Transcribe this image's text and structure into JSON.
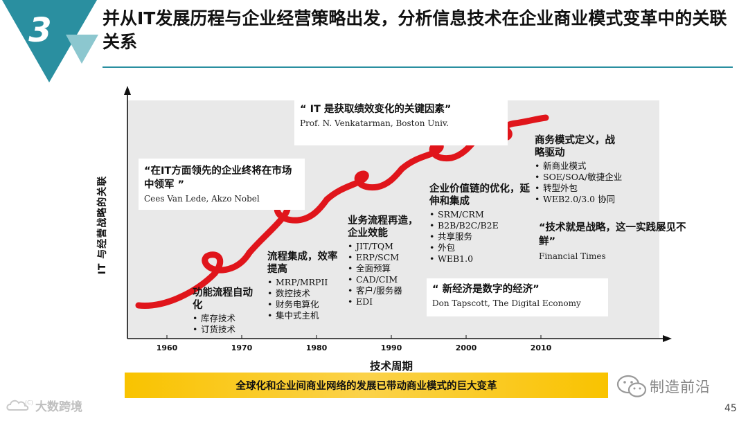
{
  "slide": {
    "section_number": "3",
    "title": "并从IT发展历程与企业经营策略出发，分析信息技术在企业商业模式变革中的关联关系",
    "page_number": "45"
  },
  "quotes": [
    {
      "text": "“在IT方面领先的企业终将在市场中领军 ”",
      "source": "Cees Van Lede,  Akzo Nobel"
    },
    {
      "text": "“ IT 是获取绩效变化的关键因素”",
      "source": "Prof. N. Venkatarman,  Boston Univ."
    },
    {
      "text": "“技术就是战略，这一实践屡见不鲜”",
      "source": "Financial Times"
    },
    {
      "text": "“ 新经济是数字的经济”",
      "source": "Don Tapscott,  The Digital Economy"
    }
  ],
  "stages": [
    {
      "title": "功能流程自动化",
      "items": [
        "库存技术",
        "订货技术"
      ]
    },
    {
      "title": "流程集成，效率提高",
      "items": [
        "MRP/MRPII",
        "数控技术",
        "财务电算化",
        "集中式主机"
      ]
    },
    {
      "title": "业务流程再造，企业效能",
      "items": [
        "JIT/TQM",
        "ERP/SCM",
        "全面预算",
        "CAD/CIM",
        "客户/服务器",
        "EDI"
      ]
    },
    {
      "title": "企业价值链的优化，延伸和集成",
      "items": [
        "SRM/CRM",
        "B2B/B2C/B2E",
        "共享服务",
        "外包",
        "WEB1.0"
      ]
    },
    {
      "title": "商务模式定义，战略驱动",
      "items": [
        "新商业模式",
        "SOE/SOA/敏捷企业",
        "转型外包",
        "WEB2.0/3.0 协同"
      ]
    }
  ],
  "axes": {
    "y_label": "IT 与经营战略的关联",
    "x_label": "技术周期",
    "x_ticks": [
      "1960",
      "1970",
      "1980",
      "1990",
      "2000",
      "2010"
    ]
  },
  "banner": "全球化和企业间商业网络的发展已带动商业模式的巨大变革",
  "wechat": {
    "icon": "wechat-icon",
    "text": "制造前沿"
  },
  "watermark": {
    "icon": "cloud-logo-icon",
    "text": "大数跨境"
  },
  "colors": {
    "accent_teal": "#2a8fa0",
    "curve_red": "#e0151b",
    "panel_gray": "#e9e9e9",
    "banner_yellow": "#f9c300"
  }
}
